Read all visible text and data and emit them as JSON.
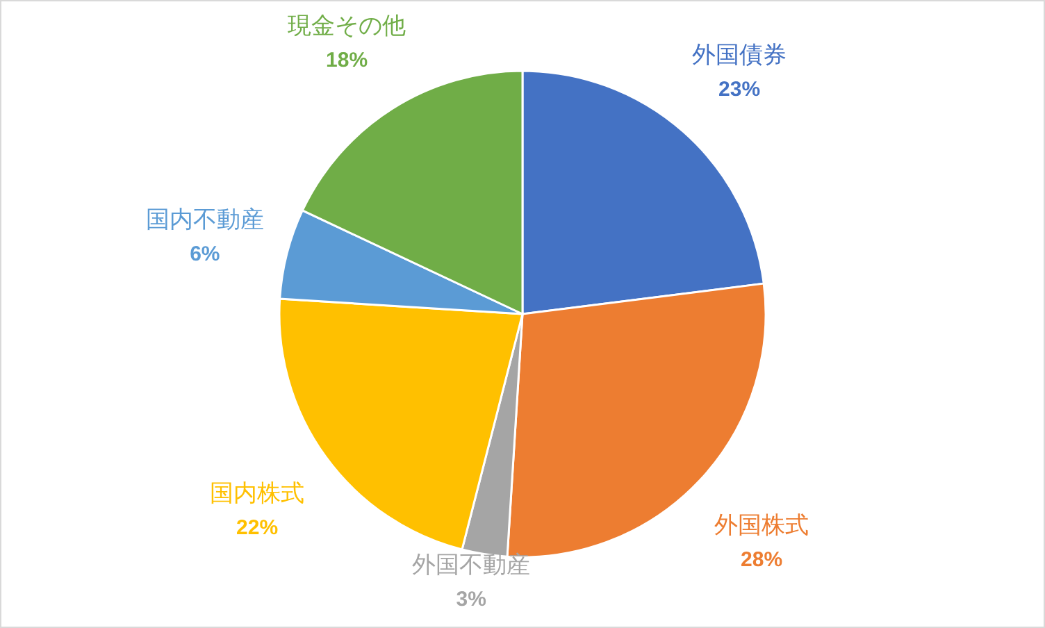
{
  "chart_data": {
    "type": "pie",
    "categories": [
      "外国債券",
      "外国株式",
      "外国不動産",
      "国内株式",
      "国内不動産",
      "現金その他"
    ],
    "values": [
      23,
      28,
      3,
      22,
      6,
      18
    ],
    "colors": [
      "#4472c4",
      "#ed7d31",
      "#a5a5a5",
      "#ffc000",
      "#5b9bd5",
      "#70ad47"
    ],
    "value_labels": [
      "23%",
      "28%",
      "3%",
      "22%",
      "6%",
      "18%"
    ]
  }
}
